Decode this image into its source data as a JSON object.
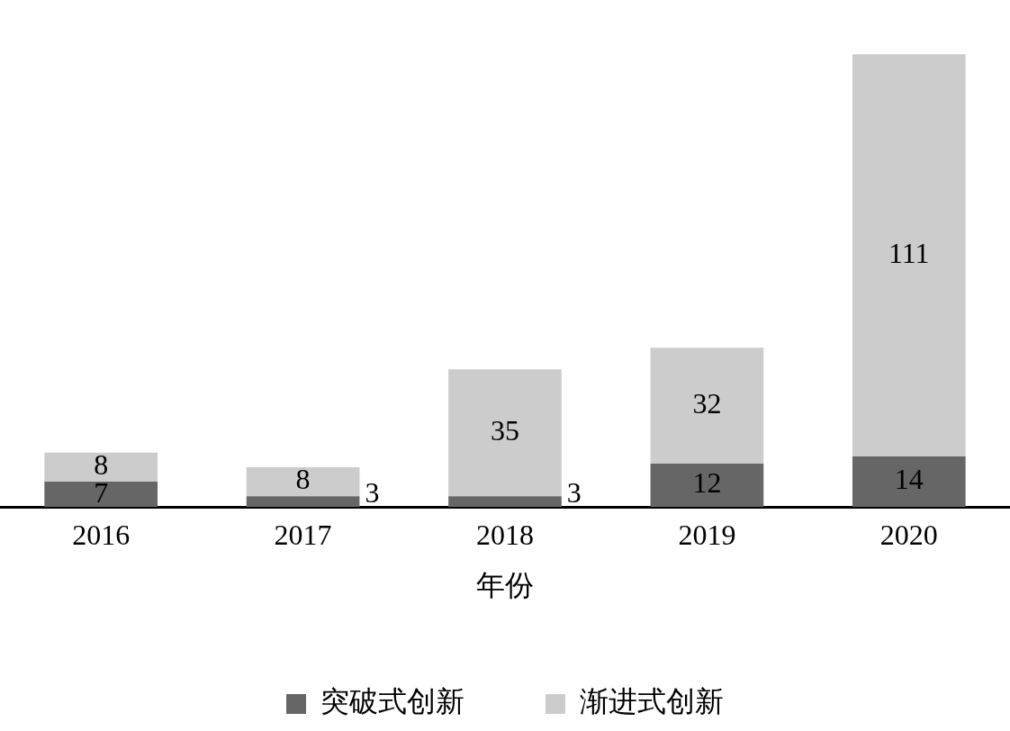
{
  "chart_data": {
    "type": "bar",
    "xlabel": "年份",
    "categories": [
      "2016",
      "2017",
      "2018",
      "2019",
      "2020"
    ],
    "stacked": true,
    "data_labels": true,
    "grid": false,
    "legend": "bottom",
    "series": [
      {
        "name": "突破式创新",
        "color": "#666666",
        "values": [
          7,
          3,
          3,
          12,
          14
        ]
      },
      {
        "name": "渐进式创新",
        "color": "#cccccc",
        "values": [
          8,
          8,
          35,
          32,
          111
        ]
      }
    ]
  }
}
